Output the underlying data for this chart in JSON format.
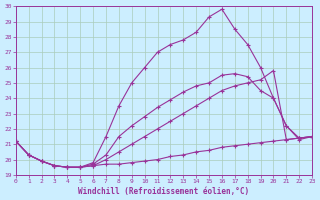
{
  "xlabel": "Windchill (Refroidissement éolien,°C)",
  "background_color": "#cceeff",
  "grid_color": "#aaccbb",
  "line_color": "#993399",
  "xlim": [
    0,
    23
  ],
  "ylim": [
    19,
    30
  ],
  "yticks": [
    19,
    20,
    21,
    22,
    23,
    24,
    25,
    26,
    27,
    28,
    29,
    30
  ],
  "xticks": [
    0,
    1,
    2,
    3,
    4,
    5,
    6,
    7,
    8,
    9,
    10,
    11,
    12,
    13,
    14,
    15,
    16,
    17,
    18,
    19,
    20,
    21,
    22,
    23
  ],
  "curves": [
    [
      21.2,
      20.3,
      19.9,
      19.6,
      19.5,
      19.5,
      19.6,
      19.7,
      19.7,
      19.8,
      19.9,
      20.0,
      20.2,
      20.3,
      20.5,
      20.6,
      20.8,
      20.9,
      21.0,
      21.1,
      21.2,
      21.3,
      21.4,
      21.5
    ],
    [
      21.2,
      20.3,
      19.9,
      19.6,
      19.5,
      19.5,
      19.6,
      20.0,
      20.5,
      21.0,
      21.5,
      22.0,
      22.5,
      23.0,
      23.5,
      24.0,
      24.5,
      24.8,
      25.0,
      25.2,
      25.8,
      21.3,
      21.4,
      21.5
    ],
    [
      21.2,
      20.3,
      19.9,
      19.6,
      19.5,
      19.5,
      19.7,
      20.3,
      21.5,
      22.2,
      22.8,
      23.4,
      23.9,
      24.4,
      24.8,
      25.0,
      25.5,
      25.6,
      25.4,
      24.5,
      24.0,
      22.2,
      21.4,
      21.5
    ],
    [
      21.2,
      20.3,
      19.9,
      19.6,
      19.5,
      19.5,
      19.8,
      21.5,
      23.5,
      25.0,
      26.0,
      27.0,
      27.5,
      27.8,
      28.3,
      29.3,
      29.8,
      28.5,
      27.5,
      26.0,
      24.0,
      22.2,
      21.3,
      21.5
    ]
  ]
}
